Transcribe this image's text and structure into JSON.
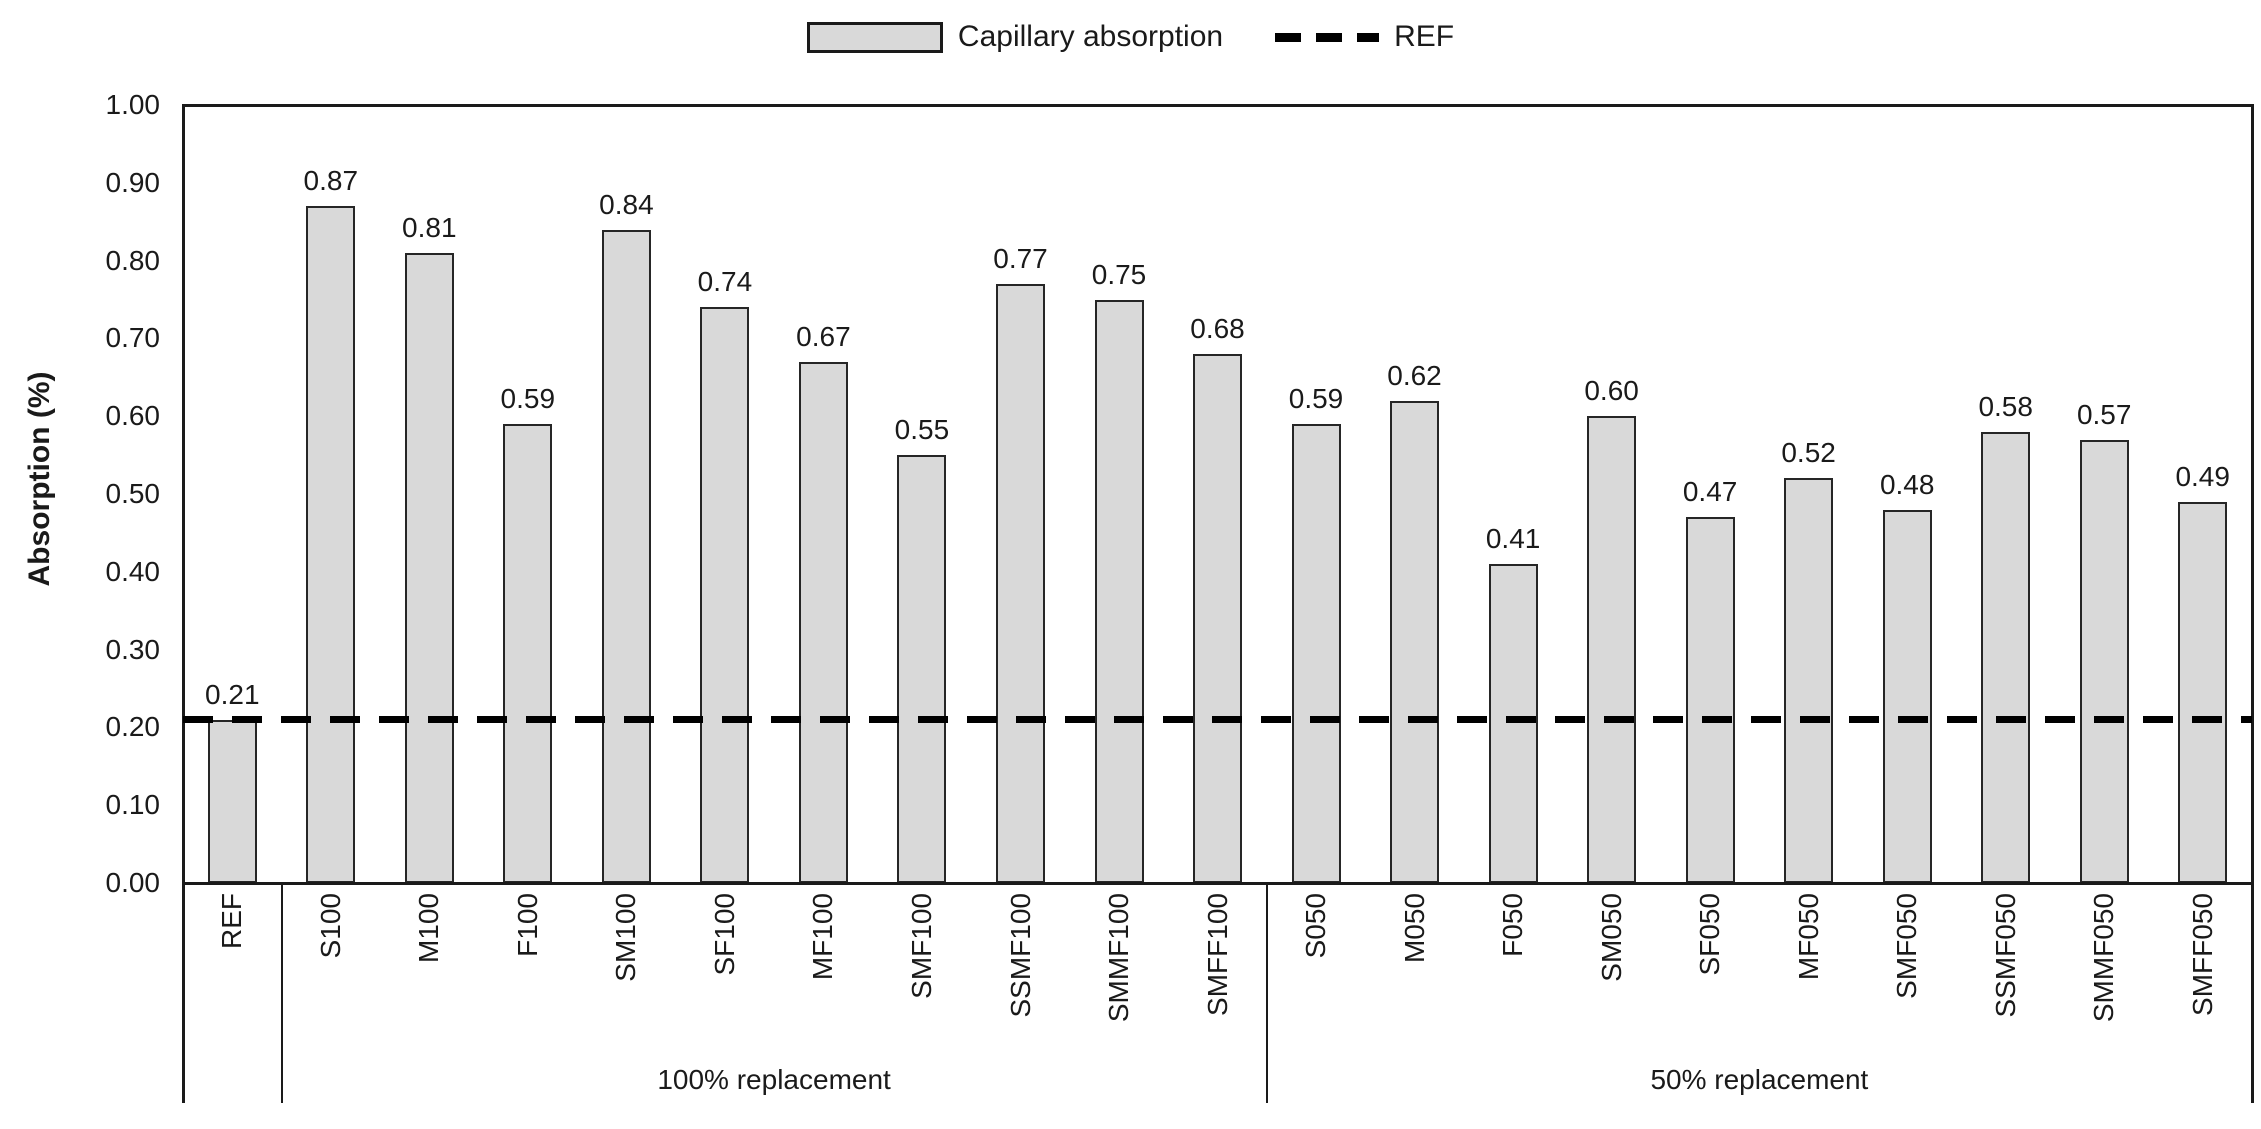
{
  "legend": {
    "bar_label": "Capillary absorption",
    "line_label": "REF"
  },
  "y_axis": {
    "title": "Absorption (%)",
    "tick_labels": [
      "1.00",
      "0.90",
      "0.80",
      "0.70",
      "0.60",
      "0.50",
      "0.40",
      "0.30",
      "0.20",
      "0.10",
      "0.00"
    ]
  },
  "chart_data": {
    "type": "bar",
    "title": "",
    "xlabel": "",
    "ylabel": "Absorption (%)",
    "ylim": [
      0,
      1.0
    ],
    "ytick_step": 0.1,
    "grid": false,
    "legend_position": "top",
    "series_name": "Capillary absorption",
    "categories": [
      "REF",
      "S100",
      "M100",
      "F100",
      "SM100",
      "SF100",
      "MF100",
      "SMF100",
      "SSMF100",
      "SMMF100",
      "SMFF100",
      "S050",
      "M050",
      "F050",
      "SM050",
      "SF050",
      "MF050",
      "SMF050",
      "SSMF050",
      "SMMF050",
      "SMFF050"
    ],
    "values": [
      0.21,
      0.87,
      0.81,
      0.59,
      0.84,
      0.74,
      0.67,
      0.55,
      0.77,
      0.75,
      0.68,
      0.59,
      0.62,
      0.41,
      0.6,
      0.47,
      0.52,
      0.48,
      0.58,
      0.57,
      0.49
    ],
    "value_labels": [
      "0.21",
      "0.87",
      "0.81",
      "0.59",
      "0.84",
      "0.74",
      "0.67",
      "0.55",
      "0.77",
      "0.75",
      "0.68",
      "0.59",
      "0.62",
      "0.41",
      "0.60",
      "0.47",
      "0.52",
      "0.48",
      "0.58",
      "0.57",
      "0.49"
    ],
    "ref_line": {
      "label": "REF",
      "value": 0.21,
      "style": "dashed",
      "color": "#000000"
    },
    "groups": [
      {
        "label": "",
        "span": [
          0,
          0
        ]
      },
      {
        "label": "100% replacement",
        "span": [
          1,
          10
        ]
      },
      {
        "label": "50% replacement",
        "span": [
          11,
          20
        ]
      }
    ]
  },
  "colors": {
    "bar_fill": "#d9d9d9",
    "bar_border": "#262626",
    "axis": "#1a1a1a",
    "ref_line": "#000000",
    "text": "#1a1a1a",
    "background": "#ffffff"
  }
}
